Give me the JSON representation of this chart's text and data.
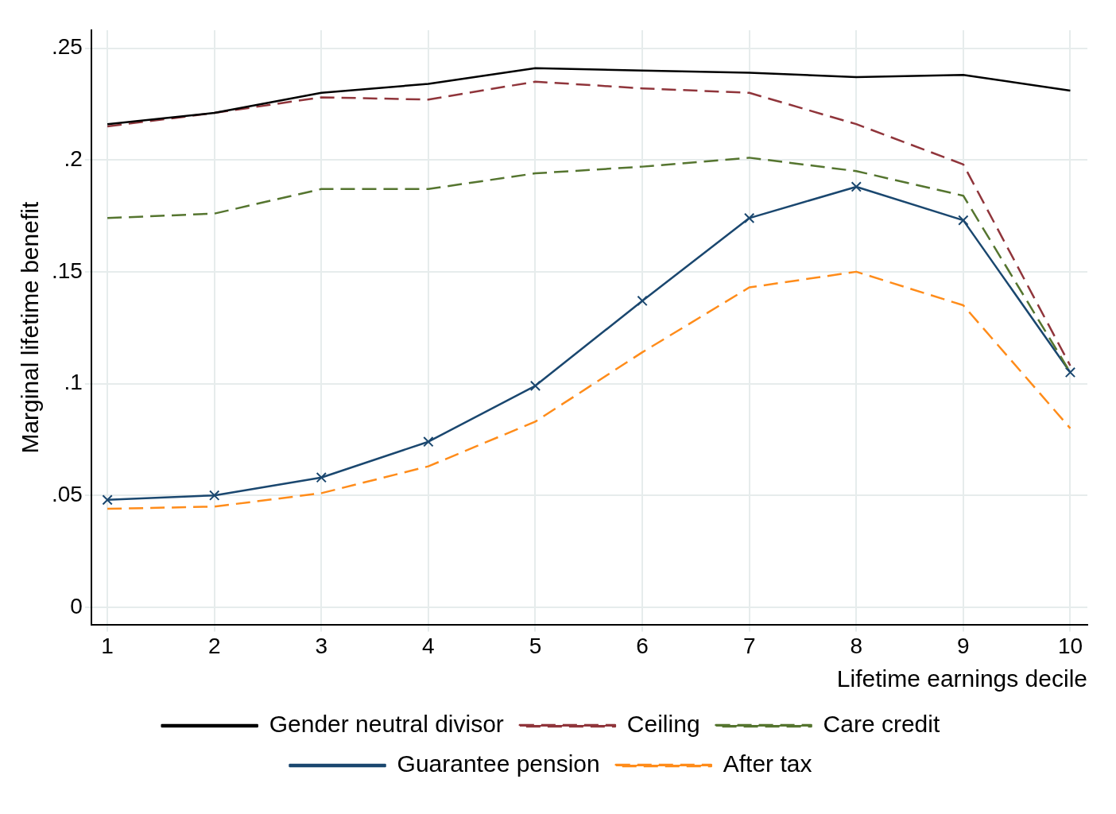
{
  "chart_data": {
    "type": "line",
    "xlabel": "Lifetime earnings decile",
    "ylabel": "Marginal lifetime benefit",
    "x": [
      1,
      2,
      3,
      4,
      5,
      6,
      7,
      8,
      9,
      10
    ],
    "xlim": [
      0.85,
      10.16
    ],
    "xticks": [
      1,
      2,
      3,
      4,
      5,
      6,
      7,
      8,
      9,
      10
    ],
    "ylim": [
      -0.008,
      0.258
    ],
    "yticks": [
      {
        "value": 0,
        "label": "0"
      },
      {
        "value": 0.05,
        "label": ".05"
      },
      {
        "value": 0.1,
        "label": ".1"
      },
      {
        "value": 0.15,
        "label": ".15"
      },
      {
        "value": 0.2,
        "label": ".2"
      },
      {
        "value": 0.25,
        "label": ".25"
      }
    ],
    "grid": true,
    "legend": "bottom",
    "series": [
      {
        "name": "Gender neutral divisor",
        "color": "#000000",
        "line_style": "solid",
        "marker": "none",
        "values": [
          0.216,
          0.221,
          0.23,
          0.234,
          0.241,
          0.24,
          0.239,
          0.237,
          0.238,
          0.231
        ]
      },
      {
        "name": "Ceiling",
        "color": "#90353b",
        "line_style": "dashed",
        "marker": "none",
        "values": [
          0.215,
          0.221,
          0.228,
          0.227,
          0.235,
          0.232,
          0.23,
          0.216,
          0.198,
          0.108
        ]
      },
      {
        "name": "Care credit",
        "color": "#55752f",
        "line_style": "dashed",
        "marker": "none",
        "values": [
          0.174,
          0.176,
          0.187,
          0.187,
          0.194,
          0.197,
          0.201,
          0.195,
          0.184,
          0.105
        ]
      },
      {
        "name": "Guarantee pension",
        "color": "#1a476f",
        "line_style": "solid",
        "marker": "cross",
        "values": [
          0.048,
          0.05,
          0.058,
          0.074,
          0.099,
          0.137,
          0.174,
          0.188,
          0.173,
          0.105
        ]
      },
      {
        "name": "After tax",
        "color": "#ff8c1a",
        "line_style": "dashed",
        "marker": "none",
        "values": [
          0.044,
          0.045,
          0.051,
          0.063,
          0.083,
          0.114,
          0.143,
          0.15,
          0.135,
          0.08
        ]
      }
    ]
  }
}
